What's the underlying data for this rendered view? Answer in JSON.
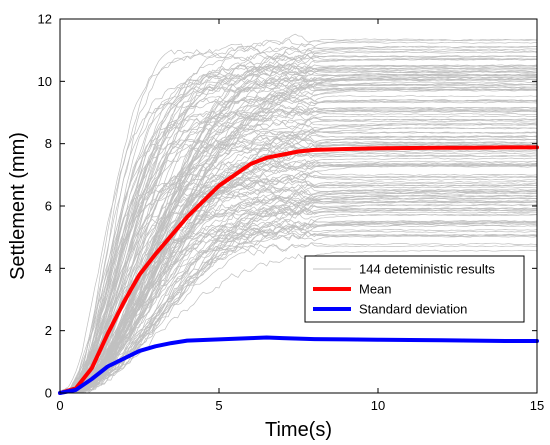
{
  "chart_data": {
    "type": "line",
    "title": "",
    "xlabel": "Time(s)",
    "ylabel": "Settlement (mm)",
    "xlim": [
      0,
      15
    ],
    "ylim": [
      0,
      12
    ],
    "xticks": [
      0,
      5,
      10,
      15
    ],
    "yticks": [
      0,
      2,
      4,
      6,
      8,
      10,
      12
    ],
    "grid": false,
    "legend": {
      "position": "bottom-right",
      "entries": [
        {
          "label": "144 deteministic results",
          "color": "#c0c0c0"
        },
        {
          "label": "Mean",
          "color": "#ff0000"
        },
        {
          "label": "Standard deviation",
          "color": "#0000ff"
        }
      ]
    },
    "series": [
      {
        "name": "Mean",
        "color": "#ff0000",
        "x": [
          0,
          0.5,
          1,
          1.5,
          2,
          2.5,
          3,
          3.5,
          4,
          4.5,
          5,
          5.5,
          6,
          6.5,
          7,
          7.5,
          8,
          9,
          10,
          11,
          12,
          13,
          14,
          15
        ],
        "y": [
          0,
          0.15,
          0.8,
          1.9,
          2.9,
          3.8,
          4.45,
          5.05,
          5.65,
          6.15,
          6.65,
          7.0,
          7.35,
          7.55,
          7.65,
          7.75,
          7.8,
          7.83,
          7.85,
          7.86,
          7.87,
          7.87,
          7.88,
          7.88
        ]
      },
      {
        "name": "Standard deviation",
        "color": "#0000ff",
        "x": [
          0,
          0.5,
          1,
          1.5,
          2,
          2.5,
          3,
          3.5,
          4,
          4.5,
          5,
          5.5,
          6,
          6.5,
          7,
          8,
          9,
          10,
          11,
          12,
          13,
          14,
          15
        ],
        "y": [
          0,
          0.1,
          0.45,
          0.85,
          1.1,
          1.35,
          1.5,
          1.6,
          1.68,
          1.7,
          1.72,
          1.74,
          1.76,
          1.78,
          1.76,
          1.73,
          1.72,
          1.71,
          1.7,
          1.69,
          1.68,
          1.67,
          1.67
        ]
      }
    ],
    "deterministic_results": {
      "name": "144 deteministic results",
      "count": 144,
      "color": "#c0c0c0",
      "final_settlement_range": [
        4.5,
        11.4
      ]
    }
  }
}
